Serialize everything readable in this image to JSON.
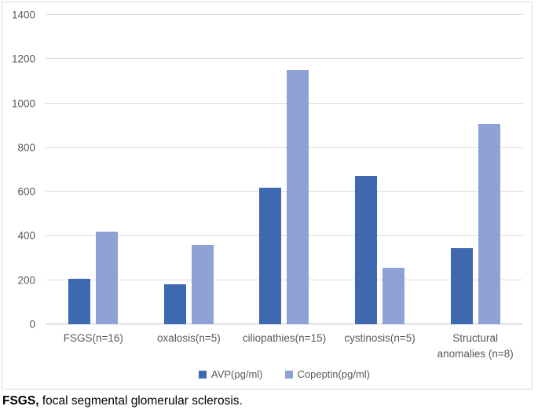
{
  "chart_data": {
    "type": "bar",
    "title": "",
    "categories": [
      "FSGS(n=16)",
      "oxalosis(n=5)",
      "ciliopathies(n=15)",
      "cystinosis(n=5)",
      "Structural anomalies (n=8)"
    ],
    "series": [
      {
        "name": "AVP(pg/ml)",
        "color": "#3E68B0",
        "values": [
          205,
          180,
          620,
          670,
          345
        ]
      },
      {
        "name": "Copeptin(pg/ml)",
        "color": "#8FA2D6",
        "values": [
          420,
          360,
          1150,
          255,
          905
        ]
      }
    ],
    "ylim": [
      0,
      1400
    ],
    "yticks": [
      0,
      200,
      400,
      600,
      800,
      1000,
      1200,
      1400
    ],
    "xlabel": "",
    "ylabel": "",
    "grid": true,
    "legend_position": "bottom"
  },
  "colors": {
    "gridline": "#DCDCDC",
    "axis_line": "#BFBFBF",
    "tick_label": "#595959",
    "frame_border": "#D9D9D9"
  },
  "caption": {
    "abbr": "FSGS,",
    "text": " focal segmental glomerular sclerosis."
  }
}
